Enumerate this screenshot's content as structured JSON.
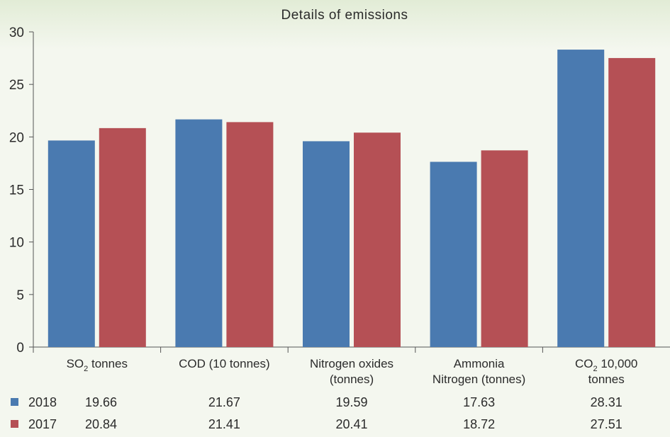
{
  "chart_data": {
    "type": "bar",
    "title": "Details of emissions",
    "xlabel": "",
    "ylabel": "",
    "ylim": [
      0,
      30
    ],
    "yticks": [
      0,
      5,
      10,
      15,
      20,
      25,
      30
    ],
    "grid": false,
    "categories": [
      {
        "lines": [
          {
            "parts": [
              {
                "text": "SO"
              },
              {
                "text": "2",
                "sub": true
              },
              {
                "text": " tonnes"
              }
            ]
          }
        ]
      },
      {
        "lines": [
          {
            "parts": [
              {
                "text": "COD (10 tonnes)"
              }
            ]
          }
        ]
      },
      {
        "lines": [
          {
            "parts": [
              {
                "text": "Nitrogen oxides"
              }
            ]
          },
          {
            "parts": [
              {
                "text": "(tonnes)"
              }
            ]
          }
        ]
      },
      {
        "lines": [
          {
            "parts": [
              {
                "text": "Ammonia"
              }
            ]
          },
          {
            "parts": [
              {
                "text": "Nitrogen (tonnes)"
              }
            ]
          }
        ]
      },
      {
        "lines": [
          {
            "parts": [
              {
                "text": "CO"
              },
              {
                "text": "2",
                "sub": true
              },
              {
                "text": " 10,000"
              }
            ]
          },
          {
            "parts": [
              {
                "text": "tonnes"
              }
            ]
          }
        ]
      }
    ],
    "series": [
      {
        "name": "2018",
        "color": "#4a7ab0",
        "values": [
          19.66,
          21.67,
          19.59,
          17.63,
          28.31
        ],
        "labels": [
          "19.66",
          "21.67",
          "19.59",
          "17.63",
          "28.31"
        ]
      },
      {
        "name": "2017",
        "color": "#b55055",
        "values": [
          20.84,
          21.41,
          20.41,
          18.72,
          27.51
        ],
        "labels": [
          "20.84",
          "21.41",
          "20.41",
          "18.72",
          "27.51"
        ]
      }
    ],
    "legend_placement": "bottom-table"
  }
}
